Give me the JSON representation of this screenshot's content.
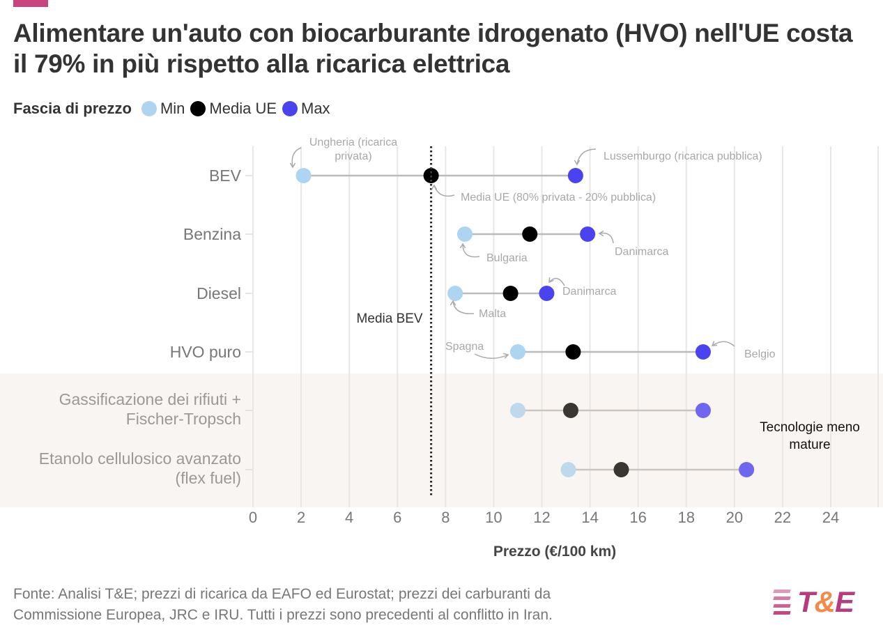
{
  "header": {
    "title": "Alimentare un'auto con biocarburante idrogenato (HVO) nell'UE costa il 79% in più rispetto alla ricarica elettrica",
    "accent_color": "#c8457f"
  },
  "legend": {
    "title": "Fascia di prezzo",
    "items": [
      {
        "label": "Min",
        "color": "#add4f0"
      },
      {
        "label": "Media UE",
        "color": "#000000"
      },
      {
        "label": "Max",
        "color": "#4a44f0"
      }
    ]
  },
  "chart_data": {
    "type": "dumbbell",
    "title": "Alimentare un'auto con biocarburante idrogenato (HVO) nell'UE costa il 79% in più rispetto alla ricarica elettrica",
    "xlabel": "Prezzo (€/100 km)",
    "ylabel": "",
    "xlim": [
      0,
      24
    ],
    "xticks": [
      0,
      2,
      4,
      6,
      8,
      10,
      12,
      14,
      16,
      18,
      20,
      22,
      24
    ],
    "grid": true,
    "legend_position": "top-left",
    "categories": [
      "BEV",
      "Benzina",
      "Diesel",
      "HVO puro",
      "Gassificazione dei rifiuti + Fischer-Tropsch",
      "Etanolo cellulosico avanzato (flex fuel)"
    ],
    "category_lines": [
      [
        "BEV"
      ],
      [
        "Benzina"
      ],
      [
        "Diesel"
      ],
      [
        "HVO puro"
      ],
      [
        "Gassificazione dei rifiuti +",
        "Fischer-Tropsch"
      ],
      [
        "Etanolo cellulosico avanzato",
        "(flex fuel)"
      ]
    ],
    "series": [
      {
        "name": "Min",
        "values": [
          2.1,
          8.8,
          8.4,
          11.0,
          11.0,
          13.1
        ]
      },
      {
        "name": "Media UE",
        "values": [
          7.4,
          11.5,
          10.7,
          13.3,
          13.2,
          15.3
        ]
      },
      {
        "name": "Max",
        "values": [
          13.4,
          13.9,
          12.2,
          18.7,
          18.7,
          20.5
        ]
      }
    ],
    "reference_line": {
      "value": 7.4,
      "label": "Media BEV"
    },
    "shaded_group": {
      "categories": [
        "Gassificazione dei rifiuti + Fischer-Tropsch",
        "Etanolo cellulosico avanzato (flex fuel)"
      ],
      "label": [
        "Tecnologie meno",
        "mature"
      ]
    },
    "annotations": [
      {
        "text": [
          "Ungheria (ricarica",
          "privata)"
        ],
        "category": "BEV",
        "series": "Min"
      },
      {
        "text": [
          "Lussemburgo (ricarica pubblica)"
        ],
        "category": "BEV",
        "series": "Max"
      },
      {
        "text": [
          "Media UE (80% privata - 20% pubblica)"
        ],
        "category": "BEV",
        "series": "Media UE"
      },
      {
        "text": [
          "Bulgaria"
        ],
        "category": "Benzina",
        "series": "Min"
      },
      {
        "text": [
          "Danimarca"
        ],
        "category": "Benzina",
        "series": "Max"
      },
      {
        "text": [
          "Malta"
        ],
        "category": "Diesel",
        "series": "Min"
      },
      {
        "text": [
          "Danimarca"
        ],
        "category": "Diesel",
        "series": "Max"
      },
      {
        "text": [
          "Spagna"
        ],
        "category": "HVO puro",
        "series": "Min"
      },
      {
        "text": [
          "Belgio"
        ],
        "category": "HVO puro",
        "series": "Max"
      }
    ]
  },
  "footer": {
    "source_lines": [
      "Fonte: Analisi T&E; prezzi di ricarica da EAFO ed Eurostat; prezzi dei carburanti da",
      "Commissione Europea, JRC e IRU. Tutti i prezzi sono precedenti al conflitto in Iran."
    ],
    "logo": {
      "left": "T",
      "amp": "&",
      "right": "E"
    }
  }
}
